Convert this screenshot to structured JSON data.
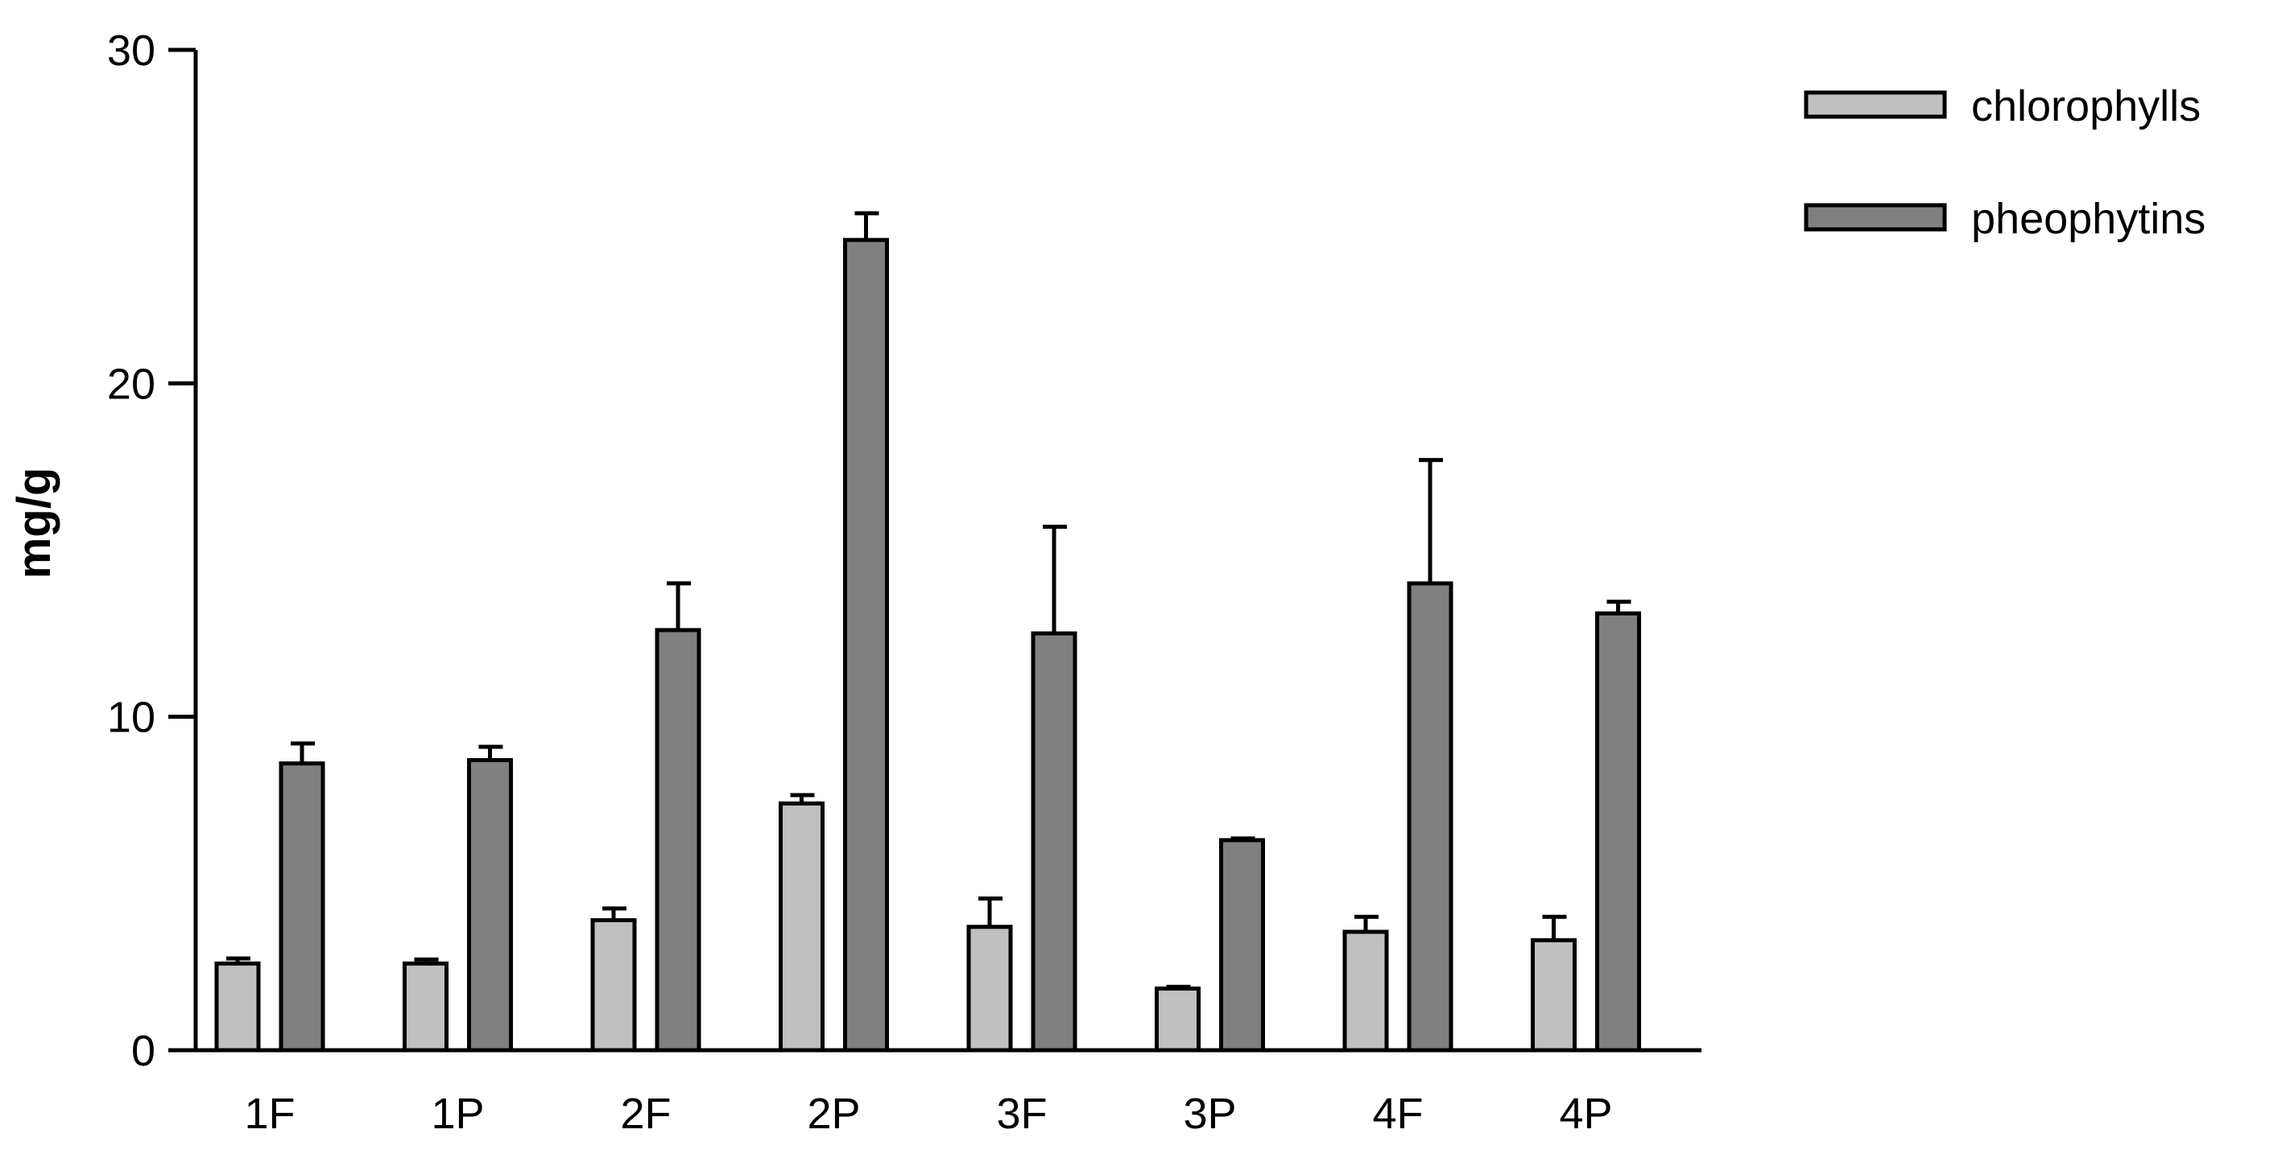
{
  "chart_data": {
    "type": "bar",
    "ylabel": "mg/g",
    "xlabel": "",
    "ylim": [
      0,
      30
    ],
    "yticks": [
      0,
      10,
      20,
      30
    ],
    "categories": [
      "1F",
      "1P",
      "2F",
      "2P",
      "3F",
      "3P",
      "4F",
      "4P"
    ],
    "legend_position": "top-right",
    "grid": false,
    "series": [
      {
        "name": "chlorophylls",
        "color": "#c0c0c0",
        "values": [
          2.6,
          2.6,
          3.9,
          7.4,
          3.7,
          1.85,
          3.55,
          3.3
        ],
        "error": [
          0.15,
          0.12,
          0.35,
          0.25,
          0.85,
          0.05,
          0.45,
          0.7
        ]
      },
      {
        "name": "pheophytins",
        "color": "#808080",
        "values": [
          8.6,
          8.7,
          12.6,
          24.3,
          12.5,
          6.3,
          14.0,
          13.1
        ],
        "error": [
          0.6,
          0.4,
          1.4,
          0.8,
          3.2,
          0.05,
          3.7,
          0.35
        ]
      }
    ]
  }
}
